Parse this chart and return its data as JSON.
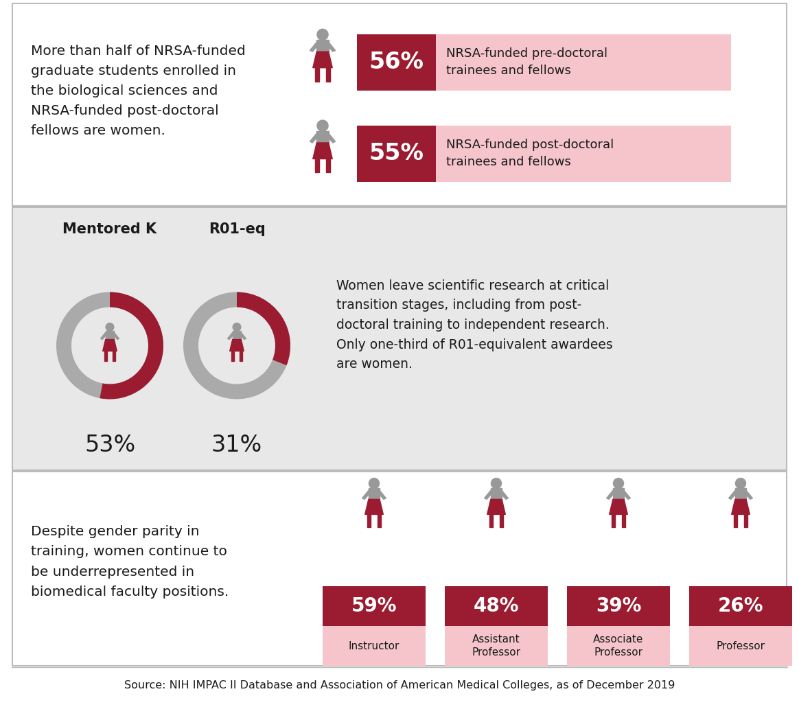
{
  "bg_color": "#ffffff",
  "panel2_bg": "#e8e8e8",
  "dark_red": "#9b1c31",
  "light_pink": "#f5c5cb",
  "gray_figure": "#999999",
  "outline_color": "#bbbbbb",
  "panel1_text": "More than half of NRSA-funded\ngraduate students enrolled in\nthe biological sciences and\nNRSA-funded post-doctoral\nfellows are women.",
  "panel1_pct1": "56%",
  "panel1_label1": "NRSA-funded pre-doctoral\ntrainees and fellows",
  "panel1_pct2": "55%",
  "panel1_label2": "NRSA-funded post-doctoral\ntrainees and fellows",
  "panel2_title1": "Mentored K",
  "panel2_title2": "R01-eq",
  "panel2_pct1": "53%",
  "panel2_pct2": "31%",
  "panel2_val1": 53,
  "panel2_val2": 31,
  "panel2_text": "Women leave scientific research at critical\ntransition stages, including from post-\ndoctoral training to independent research.\nOnly one-third of R01-equivalent awardees\nare women.",
  "panel3_text": "Despite gender parity in\ntraining, women continue to\nbe underrepresented in\nbiomedical faculty positions.",
  "panel3_positions": [
    "Instructor",
    "Assistant\nProfessor",
    "Associate\nProfessor",
    "Professor"
  ],
  "panel3_pcts": [
    "59%",
    "48%",
    "39%",
    "26%"
  ],
  "panel3_vals": [
    59,
    48,
    39,
    26
  ],
  "source_text": "Source: NIH IMPAC II Database and Association of American Medical Colleges, as of December 2019"
}
